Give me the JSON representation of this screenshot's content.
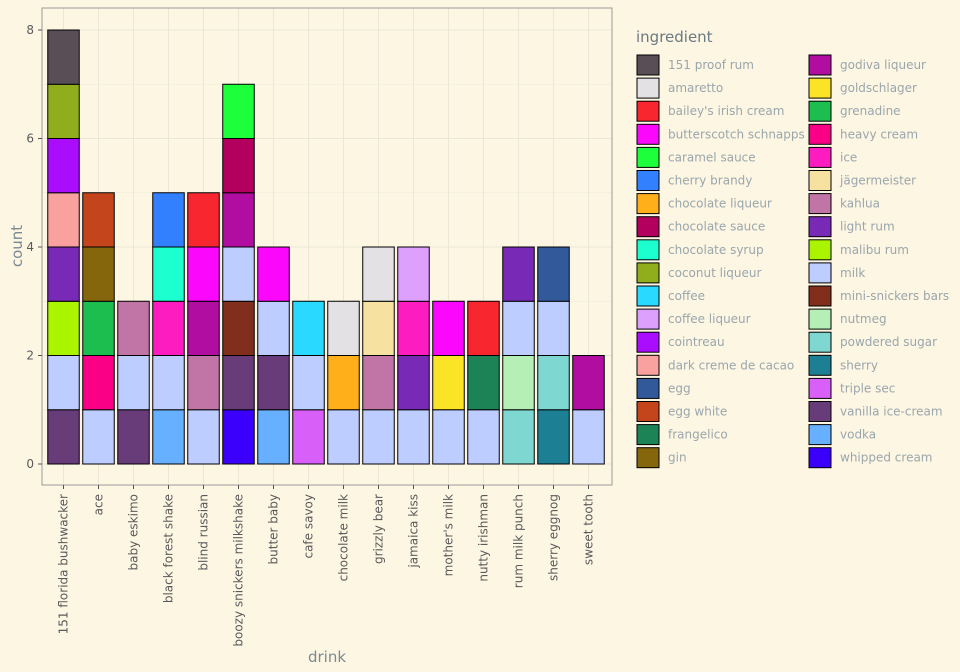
{
  "chart_data": {
    "type": "bar",
    "stacked": true,
    "xlabel": "drink",
    "ylabel": "count",
    "ylim": [
      0,
      8.4
    ],
    "yticks": [
      0,
      2,
      4,
      6,
      8
    ],
    "grid": true,
    "legend_title": "ingredient",
    "legend_position": "right",
    "legend_columns": 2,
    "categories": [
      "151 florida bushwacker",
      "ace",
      "baby eskimo",
      "black forest shake",
      "blind russian",
      "boozy snickers milkshake",
      "butter baby",
      "cafe savoy",
      "chocolate milk",
      "grizzly bear",
      "jamaica kiss",
      "mother's milk",
      "nutty irishman",
      "rum milk punch",
      "sherry eggnog",
      "sweet tooth"
    ],
    "stacks": [
      [
        "vanilla ice-cream",
        "milk",
        "malibu rum",
        "light rum",
        "dark creme de cacao",
        "cointreau",
        "coconut liqueur",
        "151 proof rum"
      ],
      [
        "milk",
        "heavy cream",
        "grenadine",
        "gin",
        "egg white"
      ],
      [
        "vanilla ice-cream",
        "milk",
        "kahlua"
      ],
      [
        "vodka",
        "milk",
        "ice",
        "chocolate syrup",
        "cherry brandy"
      ],
      [
        "milk",
        "kahlua",
        "godiva liqueur",
        "butterscotch schnapps",
        "bailey's irish cream"
      ],
      [
        "whipped cream",
        "vanilla ice-cream",
        "mini-snickers bars",
        "milk",
        "godiva liqueur",
        "chocolate sauce",
        "caramel sauce"
      ],
      [
        "vodka",
        "vanilla ice-cream",
        "milk",
        "butterscotch schnapps"
      ],
      [
        "triple sec",
        "milk",
        "coffee"
      ],
      [
        "milk",
        "chocolate liqueur",
        "amaretto"
      ],
      [
        "milk",
        "kahlua",
        "jägermeister",
        "amaretto"
      ],
      [
        "milk",
        "light rum",
        "ice",
        "coffee liqueur"
      ],
      [
        "milk",
        "goldschlager",
        "butterscotch schnapps"
      ],
      [
        "milk",
        "frangelico",
        "bailey's irish cream"
      ],
      [
        "powdered sugar",
        "nutmeg",
        "milk",
        "light rum"
      ],
      [
        "sherry",
        "powdered sugar",
        "milk",
        "egg"
      ],
      [
        "milk",
        "godiva liqueur"
      ]
    ],
    "legend": [
      {
        "name": "151 proof rum",
        "color": "#5A4E56"
      },
      {
        "name": "amaretto",
        "color": "#E3E1E3"
      },
      {
        "name": "bailey's irish cream",
        "color": "#F7262F"
      },
      {
        "name": "butterscotch schnapps",
        "color": "#FB07FC"
      },
      {
        "name": "caramel sauce",
        "color": "#1CFF3A"
      },
      {
        "name": "cherry brandy",
        "color": "#3380FF"
      },
      {
        "name": "chocolate liqueur",
        "color": "#FEAF1A"
      },
      {
        "name": "chocolate sauce",
        "color": "#B3005E"
      },
      {
        "name": "chocolate syrup",
        "color": "#1CFFCE"
      },
      {
        "name": "coconut liqueur",
        "color": "#90AD1C"
      },
      {
        "name": "coffee",
        "color": "#2AD9FF"
      },
      {
        "name": "coffee liqueur",
        "color": "#DEA0FD"
      },
      {
        "name": "cointreau",
        "color": "#AA0DFE"
      },
      {
        "name": "dark creme de cacao",
        "color": "#F8A19F"
      },
      {
        "name": "egg",
        "color": "#325A9B"
      },
      {
        "name": "egg white",
        "color": "#C4451C"
      },
      {
        "name": "frangelico",
        "color": "#1C8356"
      },
      {
        "name": "gin",
        "color": "#85660D"
      },
      {
        "name": "godiva liqueur",
        "color": "#B10DA1"
      },
      {
        "name": "goldschlager",
        "color": "#FBE426"
      },
      {
        "name": "grenadine",
        "color": "#1CBE4F"
      },
      {
        "name": "heavy cream",
        "color": "#FA0087"
      },
      {
        "name": "ice",
        "color": "#FC1CBF"
      },
      {
        "name": "jägermeister",
        "color": "#F7E1A0"
      },
      {
        "name": "kahlua",
        "color": "#C075A6"
      },
      {
        "name": "light rum",
        "color": "#782AB6"
      },
      {
        "name": "malibu rum",
        "color": "#AAF400"
      },
      {
        "name": "milk",
        "color": "#BDCDFF"
      },
      {
        "name": "mini-snickers bars",
        "color": "#822E1C"
      },
      {
        "name": "nutmeg",
        "color": "#B5EFB5"
      },
      {
        "name": "powdered sugar",
        "color": "#7ED7D1"
      },
      {
        "name": "sherry",
        "color": "#1C7F93"
      },
      {
        "name": "triple sec",
        "color": "#D85FF7"
      },
      {
        "name": "vanilla ice-cream",
        "color": "#683B79"
      },
      {
        "name": "vodka",
        "color": "#66B0FF"
      },
      {
        "name": "whipped cream",
        "color": "#3B00FB"
      }
    ]
  }
}
